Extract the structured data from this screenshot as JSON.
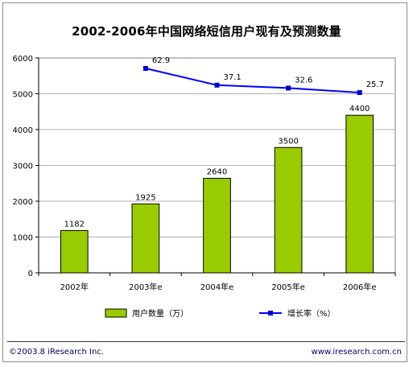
{
  "chart_data": {
    "type": "bar",
    "title": "2002-2006年中国网络短信用户现有及预测数量",
    "categories": [
      "2002年",
      "2003年e",
      "2004年e",
      "2005年e",
      "2006年e"
    ],
    "series": [
      {
        "name": "用户数量（万）",
        "type": "bar",
        "values": [
          1182,
          1925,
          2640,
          3500,
          4400
        ],
        "labels": [
          "1182",
          "1925",
          "2640",
          "3500",
          "4400"
        ],
        "color": "#99cc00"
      },
      {
        "name": "增长率（%）",
        "type": "line",
        "values": [
          null,
          62.9,
          37.1,
          32.6,
          25.7
        ],
        "labels": [
          "",
          "62.9",
          "37.1",
          "32.6",
          "25.7"
        ],
        "color": "#0000ff"
      }
    ],
    "ylim": [
      0,
      6000
    ],
    "yticks": [
      "0",
      "1000",
      "2000",
      "3000",
      "4000",
      "5000",
      "6000"
    ],
    "xlabel": "",
    "ylabel": "",
    "grid": true,
    "legend": "bottom"
  },
  "footer": {
    "copyright": "©2003.8 iResearch Inc.",
    "website": "www.iresearch.com.cn"
  }
}
